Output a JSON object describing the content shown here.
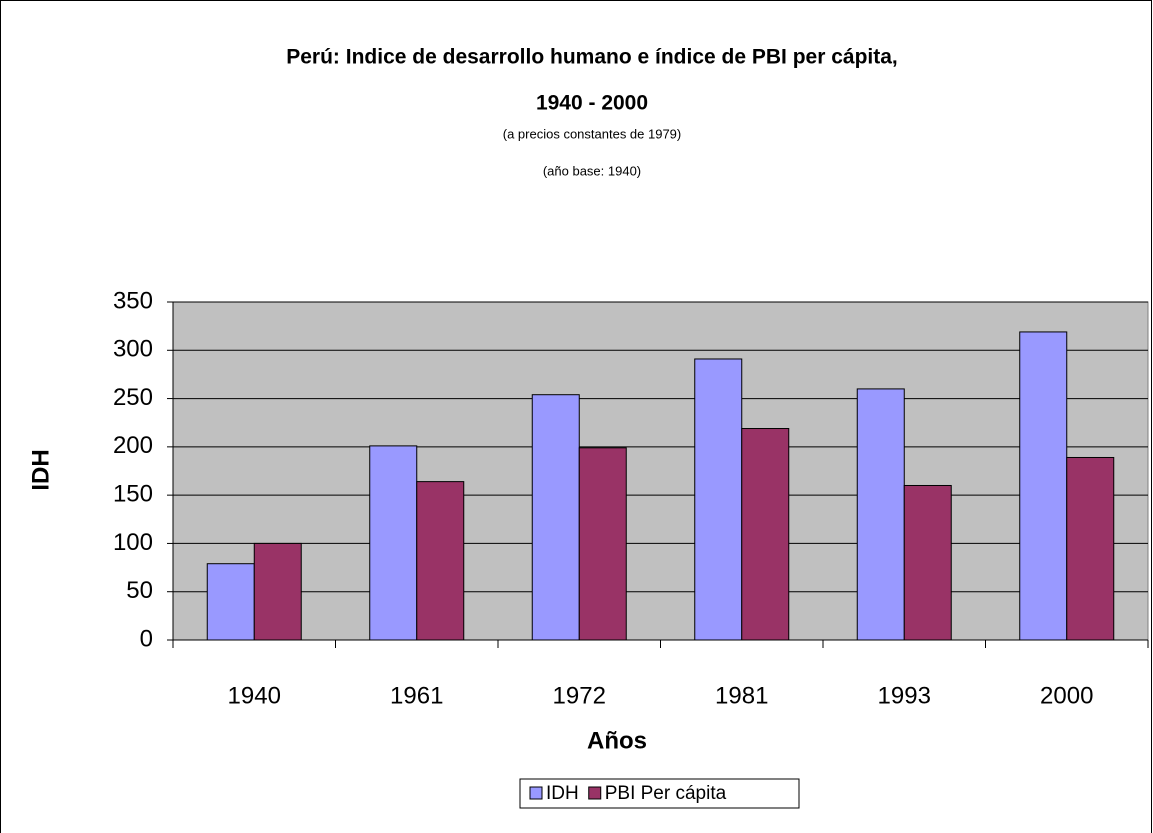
{
  "chart_data": {
    "type": "bar",
    "title": [
      "Perú: Indice de desarrollo humano e índice de PBI per cápita,",
      "1940 - 2000"
    ],
    "subtitle": [
      "(a precios constantes de 1979)",
      "(año base: 1940)"
    ],
    "x_label": "Años",
    "y_label": "IDH",
    "categories": [
      "1940",
      "1961",
      "1972",
      "1981",
      "1993",
      "2000"
    ],
    "series": [
      {
        "name": "IDH",
        "color": "#9999ff",
        "values": [
          79,
          201,
          254,
          291,
          260,
          319
        ]
      },
      {
        "name": "PBI Per cápita",
        "color": "#993366",
        "values": [
          100,
          164,
          199,
          219,
          160,
          189
        ]
      }
    ],
    "ylim": [
      0,
      350
    ],
    "yticks": [
      0,
      50,
      100,
      150,
      200,
      250,
      300,
      350
    ],
    "grid": true,
    "legend": "bottom",
    "plot_background": "#c0c0c0"
  }
}
